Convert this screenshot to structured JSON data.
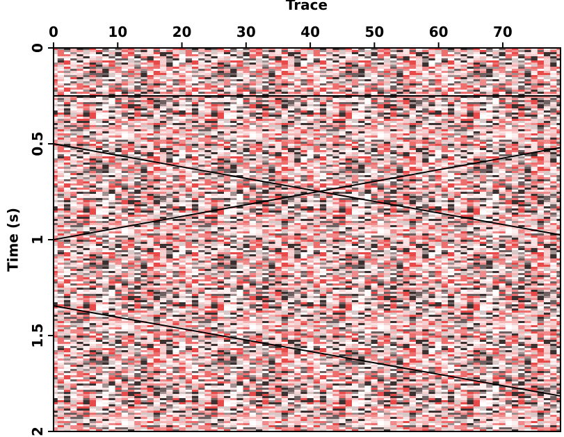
{
  "chart_data": {
    "type": "line",
    "x_label": "Trace",
    "y_label": "Time (s)",
    "x": [
      0,
      79
    ],
    "series": [
      {
        "color": "#000000",
        "values": [
          0.25,
          0.25
        ]
      },
      {
        "color": "#000000",
        "values": [
          0.5,
          0.975
        ]
      },
      {
        "color": "#000000",
        "values": [
          1.0,
          0.52
        ]
      },
      {
        "color": "#000000",
        "values": [
          1.345,
          1.815
        ]
      }
    ],
    "xlim": [
      0,
      79
    ],
    "xticks": [
      0,
      10,
      20,
      30,
      40,
      50,
      60,
      70
    ],
    "ylim": [
      0,
      2
    ],
    "yticks": [
      0,
      0.5,
      1,
      1.5,
      2
    ],
    "y_inverted": true,
    "x_axis_position": "top"
  }
}
